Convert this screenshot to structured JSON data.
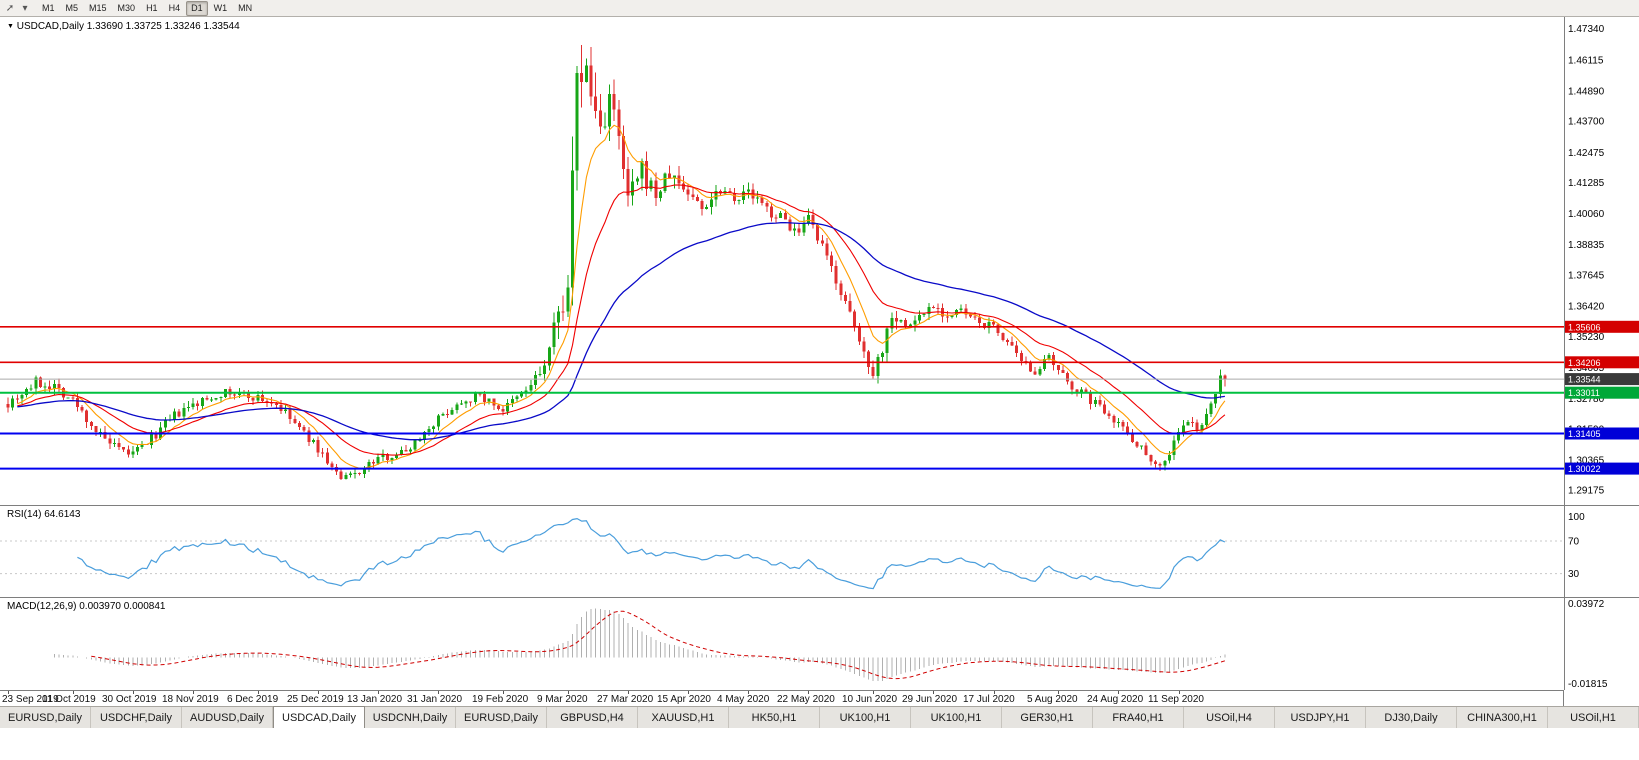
{
  "window": {
    "title_symbol": "USDCAD,Daily",
    "ohlc": "1.33690 1.33725 1.33246 1.33544"
  },
  "toolbar": {
    "timeframes": [
      "M1",
      "M5",
      "M15",
      "M30",
      "H1",
      "H4",
      "D1",
      "W1",
      "MN"
    ],
    "active": "D1"
  },
  "tabs": {
    "active_index": 3,
    "items": [
      "EURUSD,Daily",
      "USDCHF,Daily",
      "AUDUSD,Daily",
      "USDCAD,Daily",
      "USDCNH,Daily",
      "EURUSD,Daily",
      "GBPUSD,H4",
      "XAUUSD,H1",
      "HK50,H1",
      "UK100,H1",
      "UK100,H1",
      "GER30,H1",
      "FRA40,H1",
      "USOil,H4",
      "USDJPY,H1",
      "DJ30,Daily",
      "CHINA300,H1",
      "USOil,H1"
    ]
  },
  "chart_data": {
    "type": "candlestick",
    "symbol": "USDCAD",
    "timeframe": "Daily",
    "seed": 7,
    "num_candles": 264,
    "current_bar": {
      "open": 1.3369,
      "high": 1.33725,
      "low": 1.33246,
      "close": 1.33544
    },
    "y_range": [
      1.2855,
      1.478
    ],
    "y_axis_labels": [
      "1.47340",
      "1.46115",
      "1.44890",
      "1.43700",
      "1.42475",
      "1.41285",
      "1.40060",
      "1.38835",
      "1.37645",
      "1.36420",
      "1.35230",
      "1.34005",
      "1.32780",
      "1.31590",
      "1.30365",
      "1.29175"
    ],
    "x_labels": [
      {
        "text": "23 Sep 2019",
        "i": 0
      },
      {
        "text": "11 Oct 2019",
        "i": 14
      },
      {
        "text": "30 Oct 2019",
        "i": 27
      },
      {
        "text": "18 Nov 2019",
        "i": 40
      },
      {
        "text": "6 Dec 2019",
        "i": 54
      },
      {
        "text": "25 Dec 2019",
        "i": 67
      },
      {
        "text": "13 Jan 2020",
        "i": 80
      },
      {
        "text": "31 Jan 2020",
        "i": 93
      },
      {
        "text": "19 Feb 2020",
        "i": 107
      },
      {
        "text": "9 Mar 2020",
        "i": 121
      },
      {
        "text": "27 Mar 2020",
        "i": 134
      },
      {
        "text": "15 Apr 2020",
        "i": 147
      },
      {
        "text": "4 May 2020",
        "i": 160
      },
      {
        "text": "22 May 2020",
        "i": 173
      },
      {
        "text": "10 Jun 2020",
        "i": 187
      },
      {
        "text": "29 Jun 2020",
        "i": 200
      },
      {
        "text": "17 Jul 2020",
        "i": 213
      },
      {
        "text": "5 Aug 2020",
        "i": 227
      },
      {
        "text": "24 Aug 2020",
        "i": 240
      },
      {
        "text": "11 Sep 2020",
        "i": 253
      }
    ],
    "price_anchors": [
      [
        0,
        1.3265,
        0.005
      ],
      [
        6,
        1.334,
        0.005
      ],
      [
        10,
        1.333,
        0.0045
      ],
      [
        14,
        1.327,
        0.0045
      ],
      [
        20,
        1.313,
        0.0045
      ],
      [
        24,
        1.307,
        0.004
      ],
      [
        27,
        1.306,
        0.004
      ],
      [
        31,
        1.312,
        0.004
      ],
      [
        36,
        1.321,
        0.004
      ],
      [
        40,
        1.325,
        0.004
      ],
      [
        46,
        1.33,
        0.0038
      ],
      [
        50,
        1.3295,
        0.0038
      ],
      [
        54,
        1.328,
        0.0038
      ],
      [
        58,
        1.3255,
        0.0038
      ],
      [
        62,
        1.318,
        0.0038
      ],
      [
        67,
        1.308,
        0.0036
      ],
      [
        72,
        1.2958,
        0.0036
      ],
      [
        76,
        1.2992,
        0.0034
      ],
      [
        80,
        1.3042,
        0.0034
      ],
      [
        86,
        1.3072,
        0.0034
      ],
      [
        93,
        1.32,
        0.0034
      ],
      [
        98,
        1.3268,
        0.0034
      ],
      [
        102,
        1.329,
        0.0034
      ],
      [
        107,
        1.3232,
        0.0036
      ],
      [
        112,
        1.331,
        0.0045
      ],
      [
        116,
        1.3405,
        0.007
      ],
      [
        119,
        1.36,
        0.012
      ],
      [
        121,
        1.376,
        0.018
      ],
      [
        123,
        1.444,
        0.03
      ],
      [
        124,
        1.46,
        0.026
      ],
      [
        126,
        1.447,
        0.02
      ],
      [
        128,
        1.434,
        0.017
      ],
      [
        130,
        1.447,
        0.015
      ],
      [
        132,
        1.428,
        0.013
      ],
      [
        134,
        1.406,
        0.011
      ],
      [
        137,
        1.417,
        0.0095
      ],
      [
        140,
        1.408,
        0.0085
      ],
      [
        143,
        1.416,
        0.0075
      ],
      [
        147,
        1.409,
        0.0065
      ],
      [
        150,
        1.403,
        0.006
      ],
      [
        154,
        1.411,
        0.0058
      ],
      [
        158,
        1.407,
        0.0055
      ],
      [
        160,
        1.409,
        0.0052
      ],
      [
        164,
        1.402,
        0.005
      ],
      [
        168,
        1.398,
        0.005
      ],
      [
        171,
        1.392,
        0.005
      ],
      [
        173,
        1.398,
        0.005
      ],
      [
        176,
        1.3868,
        0.005
      ],
      [
        179,
        1.375,
        0.005
      ],
      [
        182,
        1.36,
        0.0052
      ],
      [
        185,
        1.3455,
        0.0055
      ],
      [
        187,
        1.339,
        0.006
      ],
      [
        189,
        1.3475,
        0.007
      ],
      [
        191,
        1.362,
        0.0065
      ],
      [
        194,
        1.3558,
        0.0055
      ],
      [
        197,
        1.36,
        0.005
      ],
      [
        200,
        1.3652,
        0.0046
      ],
      [
        203,
        1.36,
        0.0044
      ],
      [
        206,
        1.3622,
        0.0042
      ],
      [
        209,
        1.358,
        0.004
      ],
      [
        213,
        1.356,
        0.004
      ],
      [
        216,
        1.35,
        0.004
      ],
      [
        219,
        1.3412,
        0.004
      ],
      [
        222,
        1.339,
        0.004
      ],
      [
        225,
        1.3432,
        0.004
      ],
      [
        227,
        1.338,
        0.004
      ],
      [
        231,
        1.3312,
        0.004
      ],
      [
        235,
        1.326,
        0.004
      ],
      [
        238,
        1.3222,
        0.004
      ],
      [
        240,
        1.3182,
        0.004
      ],
      [
        243,
        1.3122,
        0.004
      ],
      [
        246,
        1.3062,
        0.004
      ],
      [
        249,
        1.3012,
        0.004
      ],
      [
        251,
        1.3062,
        0.004
      ],
      [
        253,
        1.3152,
        0.004
      ],
      [
        255,
        1.3182,
        0.0038
      ],
      [
        257,
        1.3162,
        0.0038
      ],
      [
        259,
        1.3202,
        0.004
      ],
      [
        261,
        1.3295,
        0.0045
      ],
      [
        263,
        1.3354,
        0.0045
      ]
    ],
    "overrides": {
      "124": {
        "h": 1.4669
      },
      "249": {
        "l": 1.2993
      },
      "261": {
        "c": 1.3295
      },
      "262": {
        "o": 1.3295,
        "h": 1.3392,
        "l": 1.3278,
        "c": 1.3369
      },
      "263": {
        "o": 1.3369,
        "h": 1.33725,
        "l": 1.33246,
        "c": 1.33544
      }
    },
    "colors": {
      "up": "#17a617",
      "down": "#e03030"
    },
    "moving_averages": [
      {
        "period": 8,
        "color": "#ff9d00",
        "width": 1.1
      },
      {
        "period": 20,
        "color": "#f00000",
        "width": 1.1
      },
      {
        "period": 52,
        "color": "#0a0ac8",
        "width": 1.3
      }
    ],
    "hlines": [
      {
        "price": 1.35606,
        "label": "1.35606",
        "color": "#e00000",
        "width": 1.6,
        "tag_bg": "#d40000"
      },
      {
        "price": 1.34206,
        "label": "1.34206",
        "color": "#e00000",
        "width": 1.6,
        "tag_bg": "#d40000"
      },
      {
        "price": 1.33011,
        "label": "1.33011",
        "color": "#00c040",
        "width": 2,
        "tag_bg": "#00a838"
      },
      {
        "price": 1.31405,
        "label": "1.31405",
        "color": "#0000f0",
        "width": 2,
        "tag_bg": "#0000d8"
      },
      {
        "price": 1.30022,
        "label": "1.30022",
        "color": "#0000f0",
        "width": 2,
        "tag_bg": "#0000d8"
      }
    ],
    "bid_line": {
      "price": 1.33544,
      "label": "1.33544",
      "color": "#aaaaaa",
      "tag_bg": "#3a3a3a"
    },
    "indicators": {
      "rsi": {
        "header_label": "RSI(14)",
        "header_value": "64.6143",
        "period": 14,
        "color": "#4a9edc",
        "levels": [
          70,
          30
        ],
        "y_range": [
          0,
          113
        ],
        "axis_labels": [
          {
            "text": "100",
            "value": 100
          },
          {
            "text": "70",
            "value": 70
          },
          {
            "text": "30",
            "value": 30
          }
        ]
      },
      "macd": {
        "header_label": "MACD(12,26,9)",
        "header_value": "0.003970 0.000841",
        "fast": 12,
        "slow": 26,
        "signal": 9,
        "hist_color": "#b0b0b0",
        "signal_color": "#d00000",
        "y_range": [
          -0.0215,
          0.0397
        ],
        "axis_labels": [
          {
            "text": "0.03972",
            "value": 0.03972
          },
          {
            "text": "-0.01815",
            "value": -0.01815
          }
        ]
      }
    }
  }
}
